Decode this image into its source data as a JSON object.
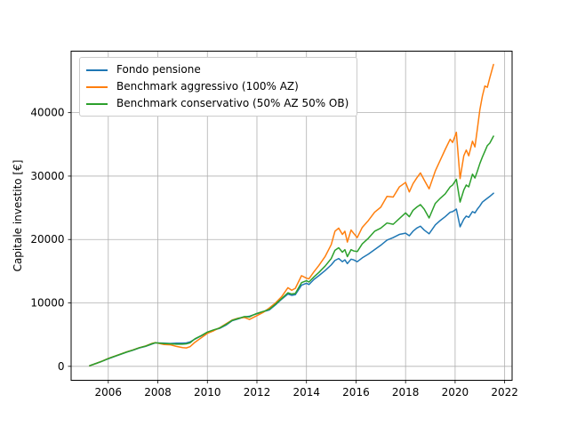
{
  "chart_data": {
    "type": "line",
    "title": "",
    "xlabel": "",
    "ylabel": "Capitale investito [€]",
    "xlim": [
      2004.5,
      2022.3
    ],
    "ylim": [
      -2200,
      49700
    ],
    "xticks": [
      2006,
      2008,
      2010,
      2012,
      2014,
      2016,
      2018,
      2020,
      2022
    ],
    "yticks": [
      0,
      10000,
      20000,
      30000,
      40000
    ],
    "grid": true,
    "grid_color": "#b0b0b0",
    "legend_position": "upper-left",
    "x": [
      2005.25,
      2005.5,
      2005.75,
      2006.0,
      2006.25,
      2006.5,
      2006.75,
      2007.0,
      2007.25,
      2007.5,
      2007.75,
      2007.9,
      2008.0,
      2008.25,
      2008.5,
      2008.75,
      2009.0,
      2009.15,
      2009.3,
      2009.5,
      2009.75,
      2010.0,
      2010.25,
      2010.5,
      2010.75,
      2011.0,
      2011.25,
      2011.5,
      2011.7,
      2011.85,
      2012.0,
      2012.25,
      2012.5,
      2012.75,
      2013.0,
      2013.25,
      2013.4,
      2013.55,
      2013.8,
      2014.0,
      2014.1,
      2014.3,
      2014.5,
      2014.75,
      2015.0,
      2015.15,
      2015.3,
      2015.45,
      2015.55,
      2015.65,
      2015.8,
      2015.9,
      2016.05,
      2016.25,
      2016.5,
      2016.75,
      2017.0,
      2017.25,
      2017.5,
      2017.75,
      2018.0,
      2018.15,
      2018.3,
      2018.45,
      2018.6,
      2018.75,
      2018.95,
      2019.2,
      2019.4,
      2019.6,
      2019.8,
      2019.9,
      2020.05,
      2020.2,
      2020.35,
      2020.45,
      2020.55,
      2020.7,
      2020.8,
      2020.9,
      2021.0,
      2021.1,
      2021.2,
      2021.3,
      2021.4,
      2021.55
    ],
    "series": [
      {
        "name": "Fondo pensione",
        "color": "#1f77b4",
        "values": [
          100,
          450,
          800,
          1200,
          1550,
          1900,
          2250,
          2550,
          2900,
          3150,
          3500,
          3700,
          3700,
          3650,
          3600,
          3650,
          3650,
          3700,
          3850,
          4300,
          4800,
          5350,
          5700,
          6000,
          6500,
          7200,
          7500,
          7800,
          7900,
          8100,
          8300,
          8600,
          8900,
          9700,
          10600,
          11400,
          11200,
          11300,
          12800,
          13100,
          12900,
          13700,
          14300,
          15100,
          16000,
          16700,
          17000,
          16500,
          16800,
          16200,
          16900,
          16800,
          16500,
          17100,
          17700,
          18400,
          19100,
          19900,
          20300,
          20800,
          21000,
          20600,
          21300,
          21800,
          22100,
          21500,
          20900,
          22300,
          23000,
          23600,
          24300,
          24400,
          24800,
          22000,
          23200,
          23700,
          23500,
          24400,
          24200,
          24800,
          25300,
          25900,
          26200,
          26500,
          26800,
          27300
        ]
      },
      {
        "name": "Benchmark aggressivo (100% AZ)",
        "color": "#ff7f0e",
        "values": [
          100,
          450,
          820,
          1250,
          1600,
          1950,
          2300,
          2600,
          2950,
          3200,
          3600,
          3750,
          3650,
          3450,
          3400,
          3150,
          2950,
          2900,
          3100,
          3800,
          4500,
          5200,
          5600,
          6100,
          6700,
          7300,
          7600,
          7700,
          7400,
          7700,
          8000,
          8500,
          9200,
          10000,
          11000,
          12400,
          12000,
          12300,
          14300,
          13900,
          13800,
          14900,
          15900,
          17300,
          19200,
          21300,
          21800,
          20800,
          21300,
          19600,
          21500,
          21000,
          20300,
          21900,
          23000,
          24300,
          25100,
          26800,
          26700,
          28300,
          29000,
          27500,
          28800,
          29700,
          30500,
          29400,
          28000,
          30800,
          32500,
          34200,
          35800,
          35300,
          36900,
          29600,
          33200,
          34100,
          33200,
          35500,
          34600,
          37500,
          40500,
          42600,
          44200,
          44000,
          45500,
          47600
        ]
      },
      {
        "name": "Benchmark conservativo (50% AZ 50% OB)",
        "color": "#2ca02c",
        "values": [
          100,
          450,
          810,
          1220,
          1580,
          1920,
          2270,
          2580,
          2930,
          3180,
          3550,
          3720,
          3680,
          3600,
          3550,
          3500,
          3500,
          3550,
          3700,
          4350,
          4850,
          5400,
          5750,
          6050,
          6600,
          7250,
          7550,
          7850,
          7800,
          8100,
          8350,
          8650,
          9000,
          9800,
          10700,
          11600,
          11400,
          11500,
          13200,
          13500,
          13300,
          14100,
          14800,
          15800,
          17000,
          18300,
          18700,
          18000,
          18400,
          17300,
          18400,
          18200,
          18100,
          19300,
          20200,
          21300,
          21800,
          22600,
          22400,
          23300,
          24200,
          23600,
          24600,
          25100,
          25500,
          24800,
          23400,
          25700,
          26500,
          27200,
          28300,
          28600,
          29500,
          25900,
          27800,
          28600,
          28300,
          30300,
          29700,
          30800,
          32000,
          33000,
          33900,
          34800,
          35200,
          36300
        ]
      }
    ]
  }
}
